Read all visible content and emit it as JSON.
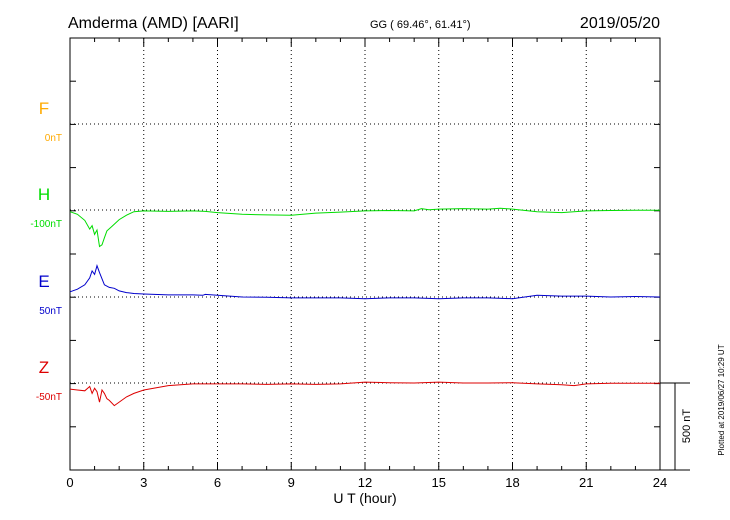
{
  "header": {
    "station": "Amderma (AMD)  [AARI]",
    "coords": "GG ( 69.46°,  61.41°)",
    "date": "2019/05/20"
  },
  "footer": {
    "plotted": "Plotted at 2019/06/27 10:29 UT",
    "scale_label": "500 nT"
  },
  "chart_data": {
    "type": "line",
    "title": "",
    "xlabel": "U T (hour)",
    "ylabel": "",
    "xlim": [
      0,
      24
    ],
    "x_ticks": [
      "0",
      "3",
      "6",
      "9",
      "12",
      "15",
      "18",
      "21",
      "24"
    ],
    "scale_bar_nT": 500,
    "grid": "dotted",
    "series": [
      {
        "name": "F",
        "baseline_label": "0nT",
        "color": "#ffaa00",
        "x": [],
        "y": []
      },
      {
        "name": "H",
        "baseline_label": "-100nT",
        "color": "#00dd00",
        "x": [
          0,
          0.3,
          0.6,
          0.8,
          0.9,
          1.0,
          1.1,
          1.2,
          1.3,
          1.4,
          1.5,
          1.7,
          2.0,
          2.3,
          2.6,
          3,
          4,
          5,
          5.5,
          6,
          7,
          8,
          9,
          10,
          11,
          12,
          13,
          14,
          14.3,
          14.6,
          15,
          16,
          17,
          17.5,
          18,
          19,
          20,
          21,
          22,
          23,
          24
        ],
        "y": [
          -10,
          -25,
          -60,
          -110,
          -90,
          -140,
          -115,
          -210,
          -200,
          -160,
          -120,
          -95,
          -55,
          -30,
          -10,
          -5,
          -8,
          -5,
          -8,
          -15,
          -25,
          -28,
          -30,
          -18,
          -12,
          -5,
          -3,
          -5,
          8,
          2,
          5,
          8,
          5,
          10,
          5,
          -10,
          -15,
          -5,
          -3,
          -2,
          -2
        ]
      },
      {
        "name": "E",
        "baseline_label": "50nT",
        "color": "#0000cc",
        "x": [
          0,
          0.3,
          0.6,
          0.8,
          0.9,
          1.0,
          1.1,
          1.2,
          1.4,
          1.6,
          1.8,
          2.0,
          2.3,
          2.6,
          3,
          4,
          5,
          5.4,
          5.5,
          6,
          7,
          8,
          9,
          10,
          11,
          12,
          13,
          14,
          15,
          16,
          17,
          18,
          19,
          20,
          21,
          22,
          23,
          24
        ],
        "y": [
          30,
          45,
          70,
          110,
          150,
          130,
          180,
          140,
          70,
          55,
          50,
          35,
          25,
          20,
          17,
          12,
          12,
          10,
          15,
          10,
          0,
          -2,
          -5,
          -5,
          -5,
          -10,
          -5,
          -5,
          -10,
          -5,
          -5,
          -10,
          10,
          5,
          5,
          0,
          3,
          0
        ]
      },
      {
        "name": "Z",
        "baseline_label": "-50nT",
        "color": "#dd0000",
        "x": [
          0,
          0.3,
          0.6,
          0.8,
          0.9,
          1.0,
          1.1,
          1.2,
          1.3,
          1.4,
          1.5,
          1.6,
          1.8,
          2.0,
          2.3,
          2.6,
          3,
          4,
          5,
          5.5,
          6,
          7,
          8,
          9,
          10,
          11,
          12,
          13,
          14,
          15,
          16,
          17,
          18,
          19,
          20,
          20.5,
          21,
          22,
          23,
          24
        ],
        "y": [
          -35,
          -40,
          -45,
          -20,
          -60,
          -30,
          -50,
          -110,
          -40,
          -60,
          -90,
          -100,
          -130,
          -110,
          -80,
          -60,
          -40,
          -15,
          -5,
          -5,
          -5,
          -5,
          -8,
          -5,
          -8,
          -5,
          5,
          2,
          0,
          5,
          0,
          0,
          2,
          -5,
          -10,
          -15,
          -5,
          -2,
          -2,
          -2
        ]
      }
    ]
  }
}
